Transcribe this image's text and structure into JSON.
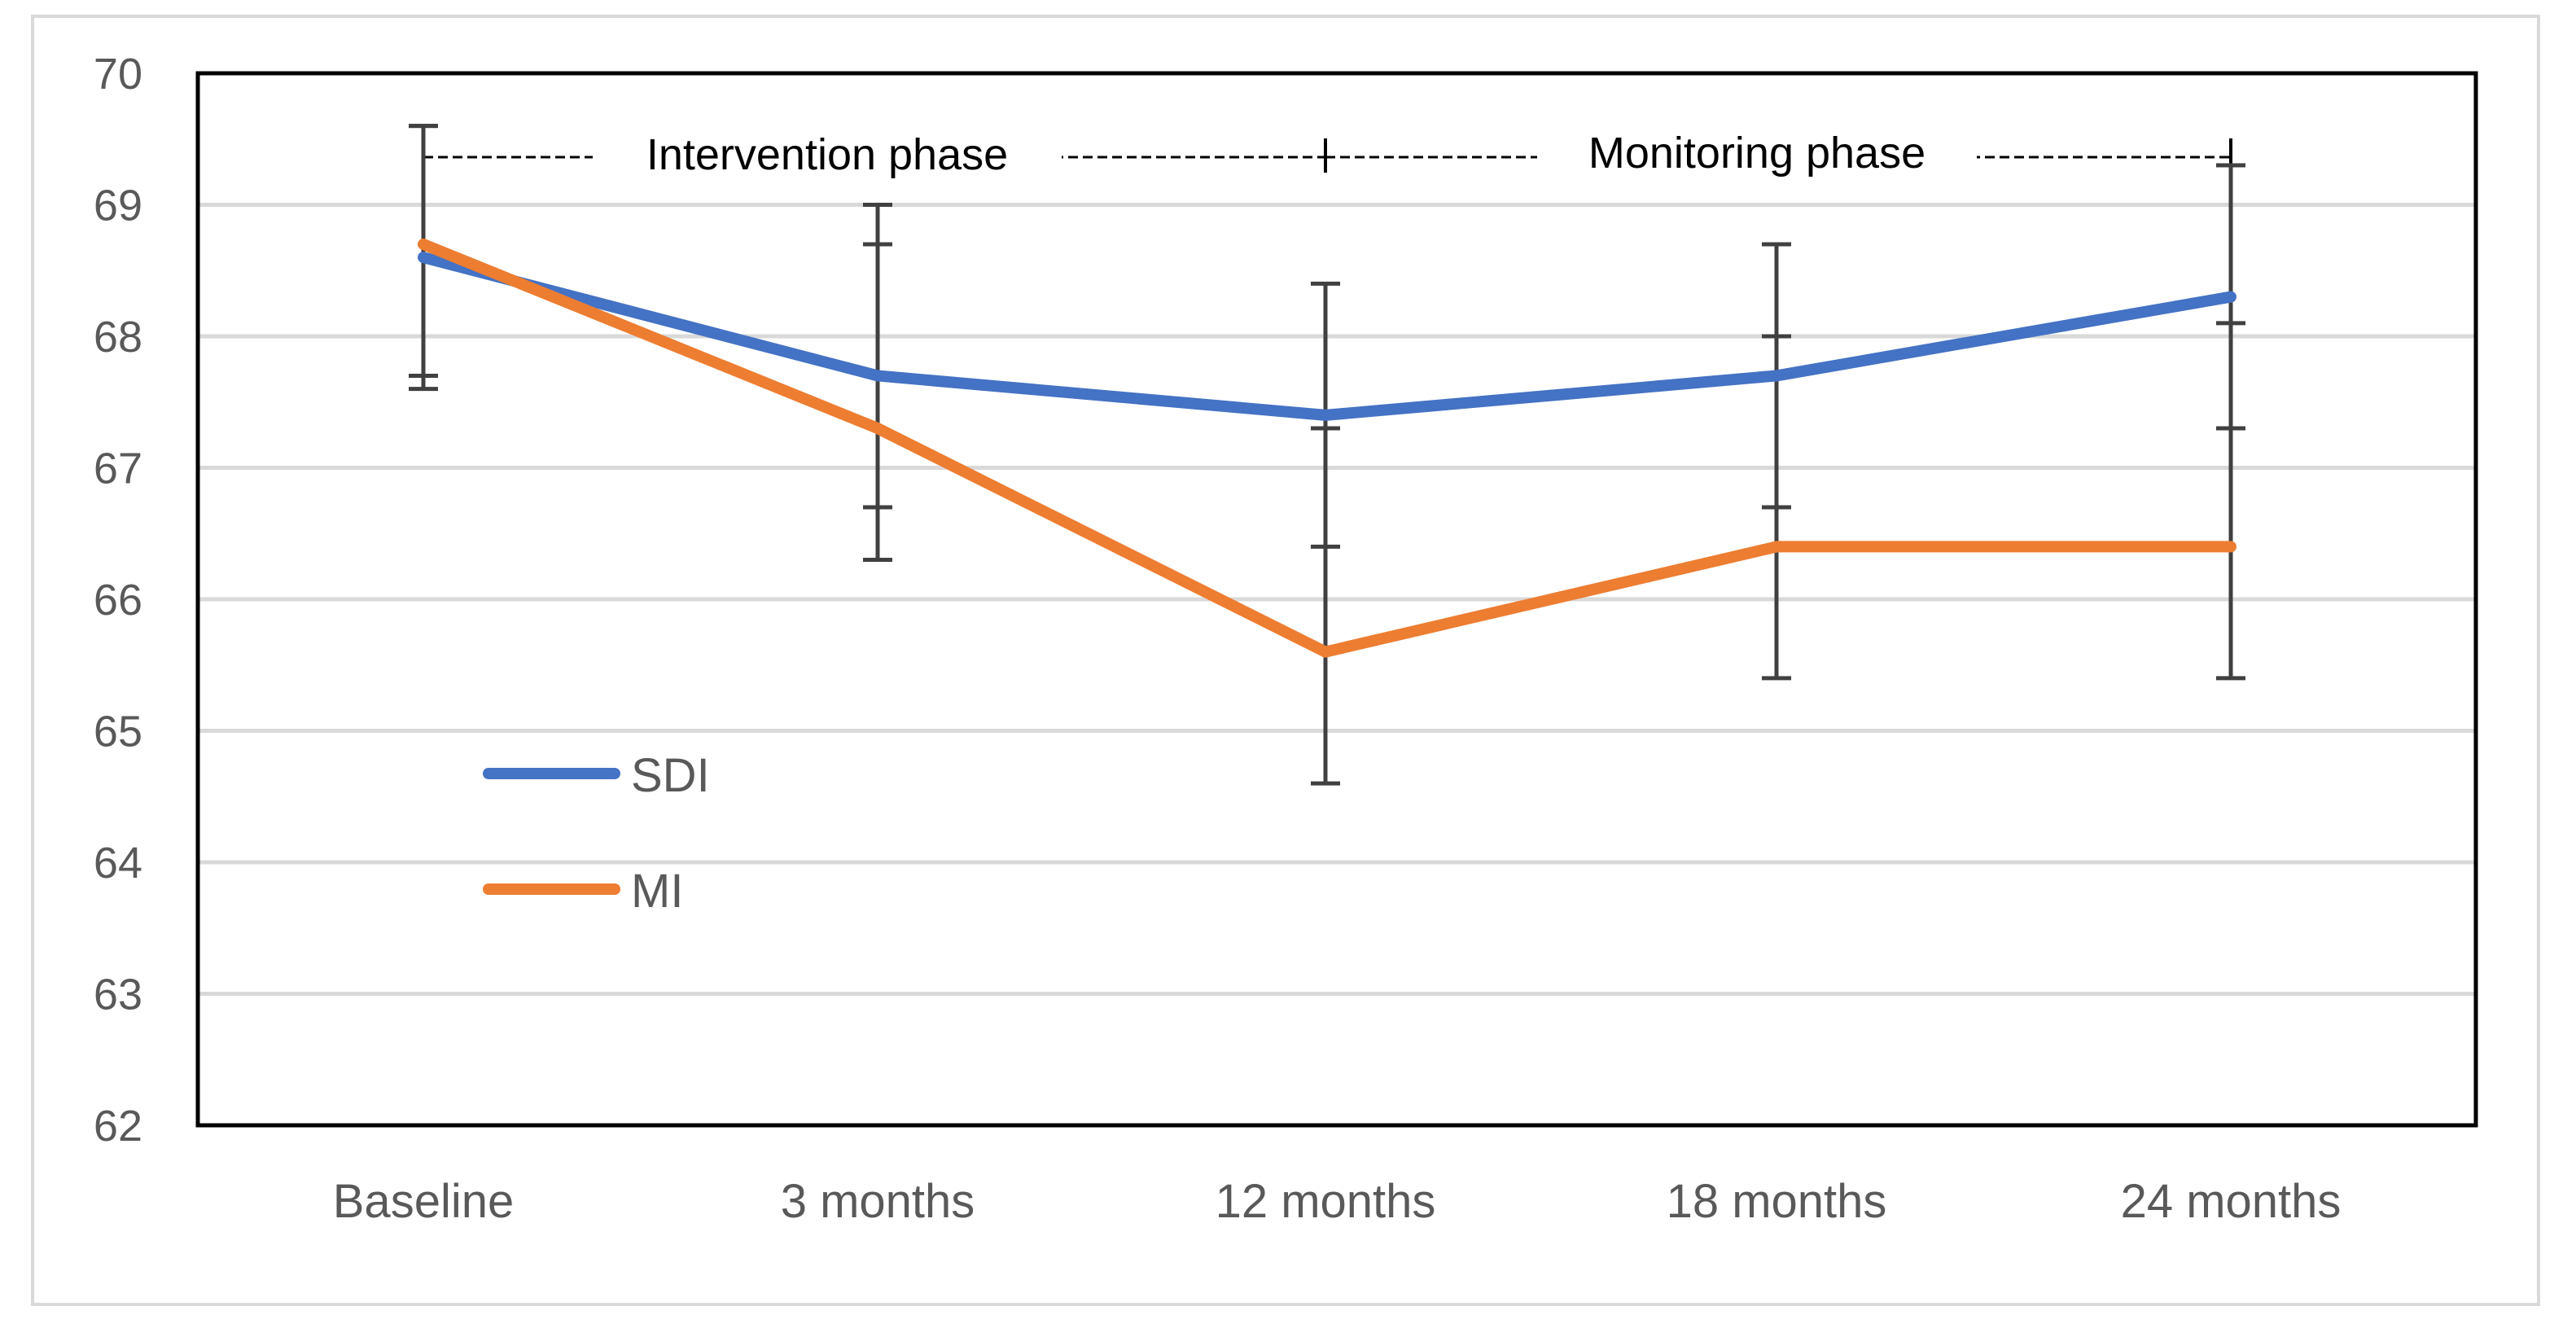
{
  "chart_data": {
    "type": "line",
    "title": "",
    "xlabel": "",
    "ylabel": "",
    "categories": [
      "Baseline",
      "3 months",
      "12 months",
      "18 months",
      "24 months"
    ],
    "ylim": [
      62,
      70
    ],
    "yticks": [
      62,
      63,
      64,
      65,
      66,
      67,
      68,
      69,
      70
    ],
    "grid": true,
    "legend_position": "lower-left inside plot",
    "series": [
      {
        "name": "SDI",
        "color": "#4472C4",
        "values": [
          68.6,
          67.7,
          67.4,
          67.7,
          68.3
        ],
        "error_low": [
          67.7,
          66.7,
          66.4,
          66.7,
          67.3
        ],
        "error_high": [
          69.6,
          68.7,
          68.4,
          68.7,
          69.3
        ]
      },
      {
        "name": "MI",
        "color": "#ED7D31",
        "values": [
          68.7,
          67.3,
          65.6,
          66.4,
          66.4
        ],
        "error_low": [
          67.6,
          66.3,
          64.6,
          65.4,
          65.4
        ],
        "error_high": [
          69.6,
          69.0,
          67.3,
          68.0,
          68.1
        ]
      }
    ],
    "annotations": {
      "intervention_label": "Intervention phase",
      "monitoring_label": "Monitoring phase"
    },
    "colors": {
      "axis": "#000000",
      "grid": "#d9d9d9",
      "error_bar": "#404040",
      "text": "#595959"
    }
  }
}
